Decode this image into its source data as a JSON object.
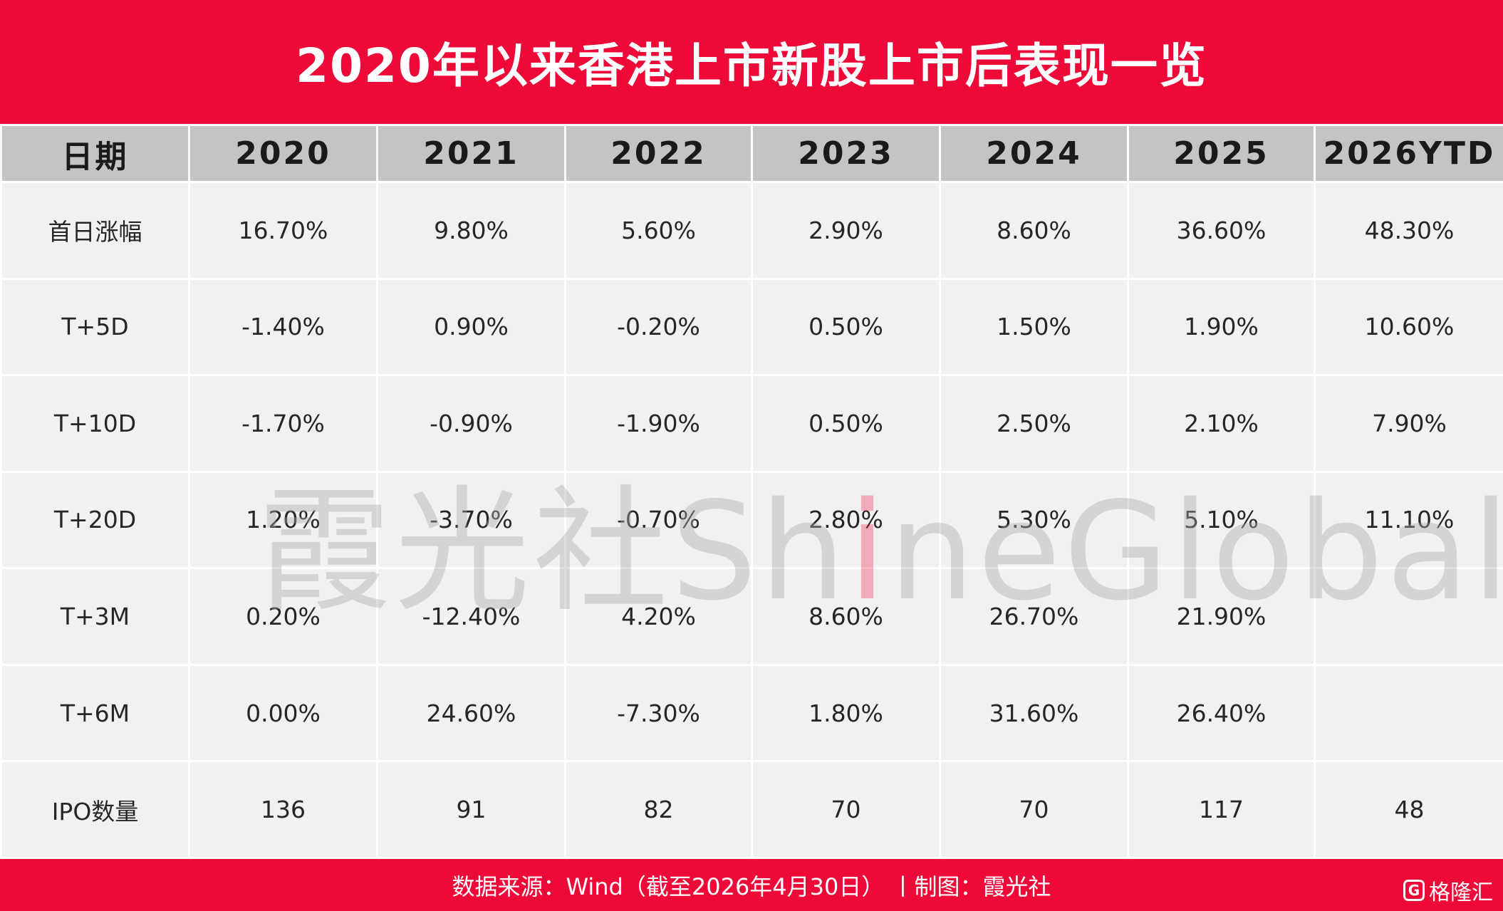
{
  "title": "2020年以来香港上市新股上市后表现一览",
  "table": {
    "headers": [
      "日期",
      "2020",
      "2021",
      "2022",
      "2023",
      "2024",
      "2025",
      "2026YTD"
    ],
    "rows": [
      {
        "label": "首日涨幅",
        "values": [
          "16.70%",
          "9.80%",
          "5.60%",
          "2.90%",
          "8.60%",
          "36.60%",
          "48.30%"
        ]
      },
      {
        "label": "T+5D",
        "values": [
          "-1.40%",
          "0.90%",
          "-0.20%",
          "0.50%",
          "1.50%",
          "1.90%",
          "10.60%"
        ]
      },
      {
        "label": "T+10D",
        "values": [
          "-1.70%",
          "-0.90%",
          "-1.90%",
          "0.50%",
          "2.50%",
          "2.10%",
          "7.90%"
        ]
      },
      {
        "label": "T+20D",
        "values": [
          "1.20%",
          "-3.70%",
          "-0.70%",
          "2.80%",
          "5.30%",
          "5.10%",
          "11.10%"
        ]
      },
      {
        "label": "T+3M",
        "values": [
          "0.20%",
          "-12.40%",
          "4.20%",
          "8.60%",
          "26.70%",
          "21.90%",
          ""
        ]
      },
      {
        "label": "T+6M",
        "values": [
          "0.00%",
          "24.60%",
          "-7.30%",
          "1.80%",
          "31.60%",
          "26.40%",
          ""
        ]
      },
      {
        "label": "IPO数量",
        "values": [
          "136",
          "91",
          "82",
          "70",
          "70",
          "117",
          "48"
        ]
      }
    ]
  },
  "watermark": {
    "part1": "霞光社Sh",
    "part2": "i",
    "part3": "neGlobal"
  },
  "footer": {
    "text": "数据来源：Wind（截至2026年4月30日） 丨制图：霞光社"
  },
  "logo": {
    "mark": "G",
    "text": "格隆汇"
  },
  "colors": {
    "brand_red": "#ee0a38",
    "header_gray": "#c4c4c4",
    "cell_bg": "#f1f1f1"
  }
}
